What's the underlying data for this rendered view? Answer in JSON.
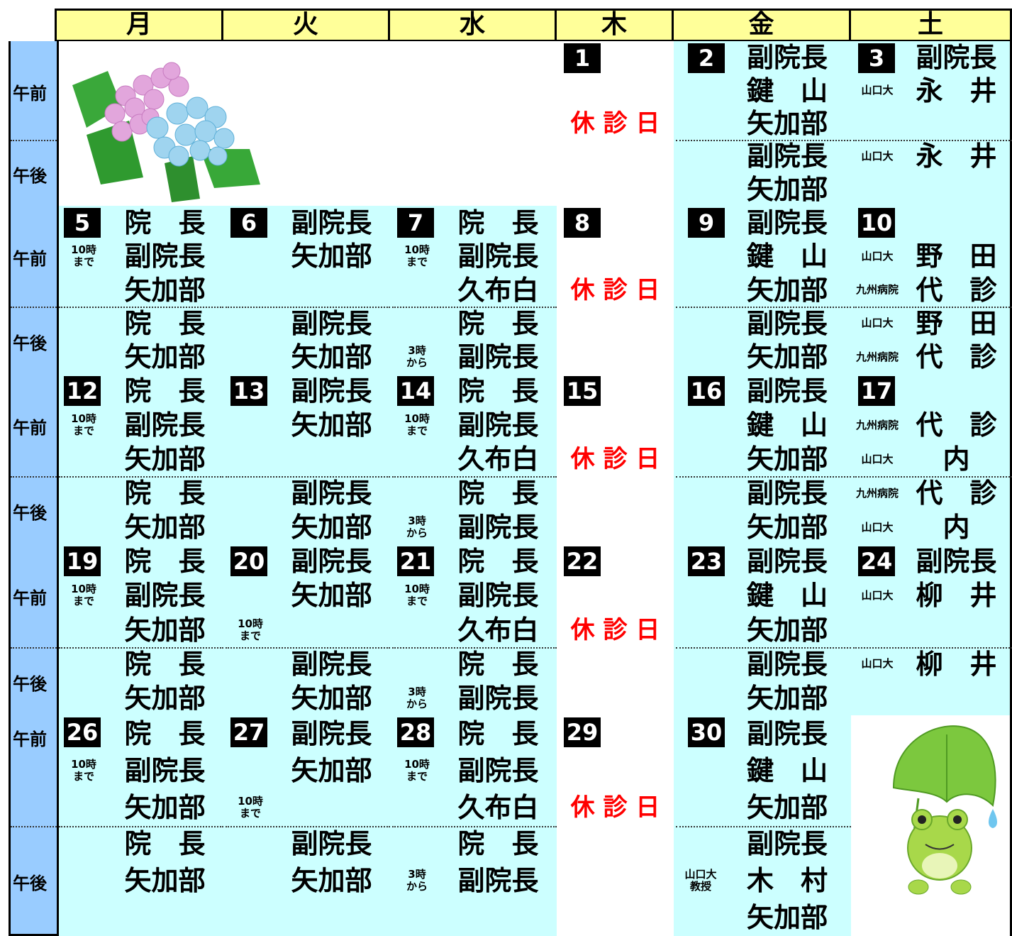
{
  "header": {
    "weekdays": [
      "月",
      "火",
      "水",
      "木",
      "金",
      "土"
    ]
  },
  "weeks": [
    {
      "am_label": "午前",
      "pm_label": "午後",
      "days": [
        null,
        null,
        null,
        {
          "day": "1",
          "lines": [
            null,
            null,
            {
              "text": "休 診 日",
              "holiday": true
            },
            null,
            null
          ]
        },
        {
          "day": "2",
          "lines": [
            {
              "text": "副院長"
            },
            {
              "text": "鍵　山"
            },
            {
              "text": "矢加部"
            },
            {
              "text": "副院長"
            },
            {
              "text": "矢加部"
            }
          ]
        },
        {
          "day": "3",
          "lines": [
            {
              "text": "副院長"
            },
            {
              "note": [
                "山口大"
              ],
              "text": "永　井"
            },
            null,
            {
              "note": [
                "山口大"
              ],
              "text": "永　井"
            },
            null
          ]
        }
      ]
    },
    {
      "am_label": "午前",
      "pm_label": "午後",
      "days": [
        {
          "day": "5",
          "lines": [
            {
              "text": "院　長"
            },
            {
              "note": [
                "10時",
                "まで"
              ],
              "text": "副院長"
            },
            {
              "text": "矢加部"
            },
            {
              "text": "院　長"
            },
            {
              "text": "矢加部"
            }
          ]
        },
        {
          "day": "6",
          "lines": [
            {
              "text": "副院長"
            },
            {
              "text": "矢加部"
            },
            null,
            {
              "text": "副院長"
            },
            {
              "text": "矢加部"
            }
          ]
        },
        {
          "day": "7",
          "lines": [
            {
              "text": "院　長"
            },
            {
              "note": [
                "10時",
                "まで"
              ],
              "text": "副院長"
            },
            {
              "text": "久布白"
            },
            {
              "text": "院　長"
            },
            {
              "note": [
                "3時",
                "から"
              ],
              "text": "副院長"
            }
          ]
        },
        {
          "day": "8",
          "lines": [
            null,
            null,
            {
              "text": "休 診 日",
              "holiday": true
            },
            null,
            null
          ]
        },
        {
          "day": "9",
          "lines": [
            {
              "text": "副院長"
            },
            {
              "text": "鍵　山"
            },
            {
              "text": "矢加部"
            },
            {
              "text": "副院長"
            },
            {
              "text": "矢加部"
            }
          ]
        },
        {
          "day": "10",
          "lines": [
            null,
            {
              "note": [
                "山口大"
              ],
              "text": "野　田"
            },
            {
              "note": [
                "九州病院"
              ],
              "text": "代　診"
            },
            {
              "note": [
                "山口大"
              ],
              "text": "野　田"
            },
            {
              "note": [
                "九州病院"
              ],
              "text": "代　診"
            }
          ]
        }
      ]
    },
    {
      "am_label": "午前",
      "pm_label": "午後",
      "days": [
        {
          "day": "12",
          "lines": [
            {
              "text": "院　長"
            },
            {
              "note": [
                "10時",
                "まで"
              ],
              "text": "副院長"
            },
            {
              "text": "矢加部"
            },
            {
              "text": "院　長"
            },
            {
              "text": "矢加部"
            }
          ]
        },
        {
          "day": "13",
          "lines": [
            {
              "text": "副院長"
            },
            {
              "text": "矢加部"
            },
            null,
            {
              "text": "副院長"
            },
            {
              "text": "矢加部"
            }
          ]
        },
        {
          "day": "14",
          "lines": [
            {
              "text": "院　長"
            },
            {
              "note": [
                "10時",
                "まで"
              ],
              "text": "副院長"
            },
            {
              "text": "久布白"
            },
            {
              "text": "院　長"
            },
            {
              "note": [
                "3時",
                "から"
              ],
              "text": "副院長"
            }
          ]
        },
        {
          "day": "15",
          "lines": [
            null,
            null,
            {
              "text": "休 診 日",
              "holiday": true
            },
            null,
            null
          ]
        },
        {
          "day": "16",
          "lines": [
            {
              "text": "副院長"
            },
            {
              "text": "鍵　山"
            },
            {
              "text": "矢加部"
            },
            {
              "text": "副院長"
            },
            {
              "text": "矢加部"
            }
          ]
        },
        {
          "day": "17",
          "lines": [
            null,
            {
              "note": [
                "九州病院"
              ],
              "text": "代　診"
            },
            {
              "note": [
                "山口大"
              ],
              "text": "内"
            },
            {
              "note": [
                "九州病院"
              ],
              "text": "代　診"
            },
            {
              "note": [
                "山口大"
              ],
              "text": "内"
            }
          ]
        }
      ]
    },
    {
      "am_label": "午前",
      "pm_label": "午後",
      "days": [
        {
          "day": "19",
          "lines": [
            {
              "text": "院　長"
            },
            {
              "note": [
                "10時",
                "まで"
              ],
              "text": "副院長"
            },
            {
              "text": "矢加部"
            },
            {
              "text": "院　長"
            },
            {
              "text": "矢加部"
            }
          ]
        },
        {
          "day": "20",
          "lines": [
            {
              "text": "副院長"
            },
            {
              "text": "矢加部"
            },
            {
              "note": [
                "10時",
                "まで"
              ]
            },
            {
              "text": "副院長"
            },
            {
              "text": "矢加部"
            }
          ]
        },
        {
          "day": "21",
          "lines": [
            {
              "text": "院　長"
            },
            {
              "note": [
                "10時",
                "まで"
              ],
              "text": "副院長"
            },
            {
              "text": "久布白"
            },
            {
              "text": "院　長"
            },
            {
              "note": [
                "3時",
                "から"
              ],
              "text": "副院長"
            }
          ]
        },
        {
          "day": "22",
          "lines": [
            null,
            null,
            {
              "text": "休 診 日",
              "holiday": true
            },
            null,
            null
          ]
        },
        {
          "day": "23",
          "lines": [
            {
              "text": "副院長"
            },
            {
              "text": "鍵　山"
            },
            {
              "text": "矢加部"
            },
            {
              "text": "副院長"
            },
            {
              "text": "矢加部"
            }
          ]
        },
        {
          "day": "24",
          "lines": [
            {
              "text": "副院長"
            },
            {
              "note": [
                "山口大"
              ],
              "text": "柳　井"
            },
            null,
            {
              "note": [
                "山口大"
              ],
              "text": "柳　井"
            },
            null
          ]
        }
      ]
    },
    {
      "am_label": "午前",
      "pm_label": "午後",
      "days": [
        {
          "day": "26",
          "lines": [
            {
              "text": "院　長"
            },
            {
              "note": [
                "10時",
                "まで"
              ],
              "text": "副院長"
            },
            {
              "text": "矢加部"
            },
            {
              "text": "院　長"
            },
            {
              "text": "矢加部"
            },
            null
          ]
        },
        {
          "day": "27",
          "lines": [
            {
              "text": "副院長"
            },
            {
              "text": "矢加部"
            },
            {
              "note": [
                "10時",
                "まで"
              ]
            },
            {
              "text": "副院長"
            },
            {
              "text": "矢加部"
            },
            null
          ]
        },
        {
          "day": "28",
          "lines": [
            {
              "text": "院　長"
            },
            {
              "note": [
                "10時",
                "まで"
              ],
              "text": "副院長"
            },
            {
              "text": "久布白"
            },
            {
              "text": "院　長"
            },
            {
              "note": [
                "3時",
                "から"
              ],
              "text": "副院長"
            },
            null
          ]
        },
        {
          "day": "29",
          "lines": [
            null,
            null,
            {
              "text": "休 診 日",
              "holiday": true
            },
            null,
            null,
            null
          ]
        },
        {
          "day": "30",
          "lines": [
            {
              "text": "副院長"
            },
            {
              "text": "鍵　山"
            },
            {
              "text": "矢加部"
            },
            {
              "text": "副院長"
            },
            {
              "note": [
                "山口大",
                "教授"
              ],
              "text": "木　村"
            },
            {
              "text": "矢加部"
            }
          ]
        },
        null
      ]
    }
  ]
}
